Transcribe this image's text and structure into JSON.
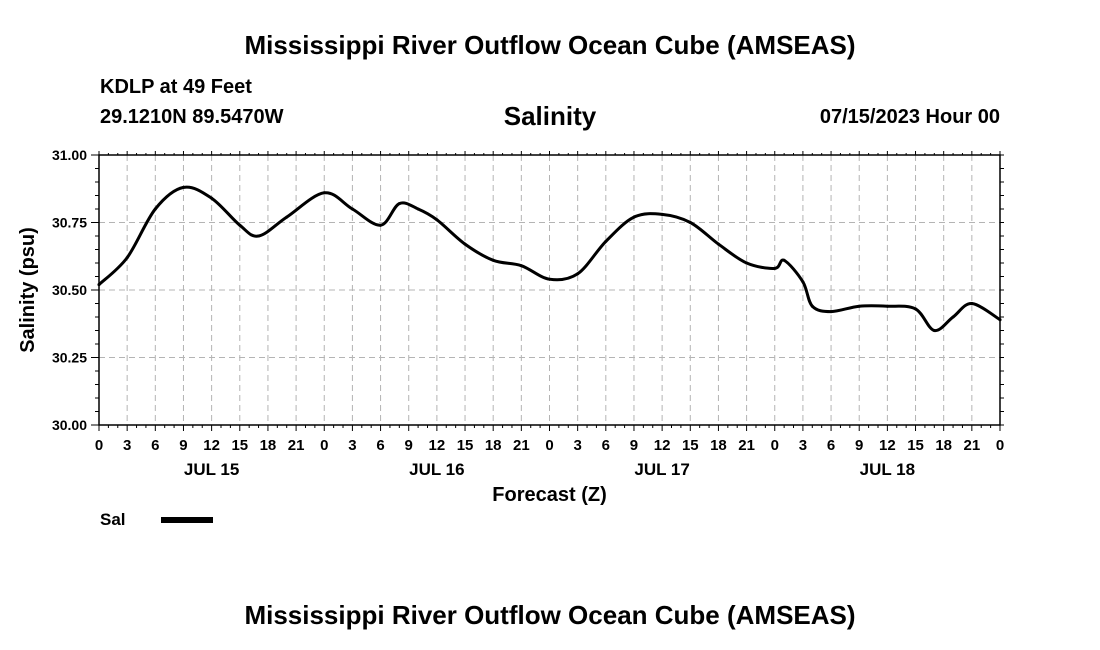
{
  "header": {
    "title": "Mississippi River Outflow Ocean Cube (AMSEAS)",
    "station": "KDLP at 49 Feet",
    "coords": "29.1210N  89.5470W",
    "subtitle": "Salinity",
    "datetime": "07/15/2023 Hour 00"
  },
  "legend": {
    "label": "Sal"
  },
  "footer": {
    "title": "Mississippi River Outflow Ocean Cube (AMSEAS)"
  },
  "chart_data": {
    "type": "line",
    "title": "Salinity",
    "xlabel": "Forecast (Z)",
    "ylabel": "Salinity (psu)",
    "ylim": [
      30.0,
      31.0
    ],
    "yticks": [
      "30.00",
      "30.25",
      "30.50",
      "30.75",
      "31.00"
    ],
    "xlim_hours": [
      0,
      96
    ],
    "x_tick_step_hours": 3,
    "x_tick_labels": [
      "0",
      "3",
      "6",
      "9",
      "12",
      "15",
      "18",
      "21",
      "0",
      "3",
      "6",
      "9",
      "12",
      "15",
      "18",
      "21",
      "0",
      "3",
      "6",
      "9",
      "12",
      "15",
      "18",
      "21",
      "0",
      "3",
      "6",
      "9",
      "12",
      "15",
      "18",
      "21",
      "0"
    ],
    "day_labels": [
      {
        "label": "JUL 15",
        "hour": 12
      },
      {
        "label": "JUL 16",
        "hour": 36
      },
      {
        "label": "JUL 17",
        "hour": 60
      },
      {
        "label": "JUL 18",
        "hour": 84
      }
    ],
    "grid": true,
    "series": [
      {
        "name": "Sal",
        "color": "#000000",
        "x": [
          0,
          3,
          6,
          9,
          12,
          15,
          17,
          20,
          24,
          27,
          30,
          32,
          34,
          36,
          39,
          42,
          45,
          48,
          51,
          54,
          57,
          60,
          63,
          66,
          69,
          72,
          73,
          75,
          76,
          78,
          81,
          84,
          87,
          89,
          91,
          93,
          96
        ],
        "y": [
          30.52,
          30.62,
          30.8,
          30.88,
          30.84,
          30.74,
          30.7,
          30.77,
          30.86,
          30.8,
          30.74,
          30.82,
          30.8,
          30.76,
          30.67,
          30.61,
          30.59,
          30.54,
          30.56,
          30.68,
          30.77,
          30.78,
          30.75,
          30.67,
          30.6,
          30.58,
          30.61,
          30.53,
          30.44,
          30.42,
          30.44,
          30.44,
          30.43,
          30.35,
          30.4,
          30.45,
          30.39
        ]
      }
    ]
  }
}
